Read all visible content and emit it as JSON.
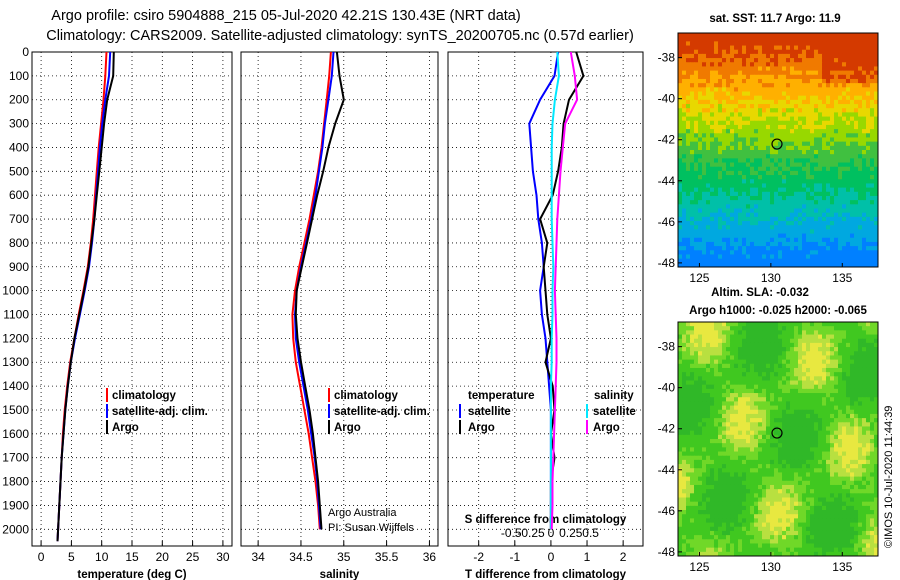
{
  "header": {
    "title_line1": "Argo profile: csiro 5904888_215 05-Jul-2020 42.21S 130.43E (NRT data)",
    "title_line2": "Climatology: CARS2009. Satellite-adjusted climatology: synTS_20200705.nc (0.57d earlier)"
  },
  "colors": {
    "climatology": "#ff0000",
    "satellite": "#0000ff",
    "argo": "#000000",
    "sat_salinity": "#00e8ff",
    "argo_salinity": "#ff00ff"
  },
  "depth_ticks": [
    "0",
    "100",
    "200",
    "300",
    "400",
    "500",
    "600",
    "700",
    "800",
    "900",
    "1000",
    "1100",
    "1200",
    "1300",
    "1400",
    "1500",
    "1600",
    "1700",
    "1800",
    "1900",
    "2000"
  ],
  "legend": {
    "climatology": "climatology",
    "satellite": "satellite-adj. clim.",
    "argo": "Argo"
  },
  "diff_legend": {
    "temperature": "temperature",
    "salinity": "salinity",
    "satellite": "satellite",
    "argo": "Argo"
  },
  "credit": {
    "line1": "Argo Australia",
    "line2": "PI: Susan Wijffels"
  },
  "imos_stamp": "©IMOS 10-Jul-2020 11:44:39",
  "map_top": {
    "title": "sat. SST: 11.7 Argo: 11.9",
    "footer": "Altim. SLA: -0.032"
  },
  "map_bottom": {
    "title": "Argo h1000: -0.025 h2000: -0.065"
  },
  "map_lat_ticks": [
    "-38",
    "-40",
    "-42",
    "-44",
    "-46",
    "-48"
  ],
  "map_lon_ticks": [
    "125",
    "130",
    "135"
  ],
  "chart_data": [
    {
      "type": "line",
      "name": "temperature-profile",
      "xlabel": "temperature (deg C)",
      "ylabel": "depth",
      "xlim": [
        -1.5,
        31.5
      ],
      "ylim": [
        2070,
        0
      ],
      "xticks": [
        "0",
        "5",
        "10",
        "15",
        "20",
        "25",
        "30"
      ],
      "series": [
        {
          "name": "climatology",
          "x": [
            10.8,
            10.6,
            10.3,
            9.9,
            9.5,
            9.2,
            8.9,
            8.6,
            8.2,
            7.7,
            7.0,
            6.2,
            5.5,
            4.8,
            4.3,
            3.9,
            3.6,
            3.4,
            3.2,
            3.0,
            2.8,
            2.7
          ],
          "y": [
            0,
            100,
            200,
            300,
            400,
            500,
            600,
            700,
            800,
            900,
            1000,
            1100,
            1200,
            1300,
            1400,
            1500,
            1600,
            1700,
            1800,
            1900,
            2000,
            2050
          ]
        },
        {
          "name": "satellite-adj. clim.",
          "x": [
            11.4,
            11.2,
            10.6,
            10.1,
            9.7,
            9.4,
            9.1,
            8.8,
            8.4,
            7.9,
            7.2,
            6.4,
            5.6,
            4.9,
            4.4,
            4.0,
            3.7,
            3.4,
            3.2,
            3.0,
            2.8,
            2.7
          ],
          "y": [
            0,
            100,
            200,
            300,
            400,
            500,
            600,
            700,
            800,
            900,
            1000,
            1100,
            1200,
            1300,
            1400,
            1500,
            1600,
            1700,
            1800,
            1900,
            2000,
            2050
          ]
        },
        {
          "name": "Argo",
          "x": [
            12.0,
            11.9,
            10.9,
            10.4,
            10.0,
            9.6,
            9.2,
            8.8,
            8.3,
            7.8,
            7.1,
            6.3,
            5.5,
            4.9,
            4.4,
            4.0,
            3.7,
            3.4,
            3.2,
            3.0,
            2.8,
            2.7
          ],
          "y": [
            0,
            100,
            200,
            300,
            400,
            500,
            600,
            700,
            800,
            900,
            1000,
            1100,
            1200,
            1300,
            1400,
            1500,
            1600,
            1700,
            1800,
            1900,
            2000,
            2050
          ]
        }
      ]
    },
    {
      "type": "line",
      "name": "salinity-profile",
      "xlabel": "salinity",
      "ylabel": "depth",
      "xlim": [
        33.8,
        36.1
      ],
      "ylim": [
        2070,
        0
      ],
      "xticks": [
        "34",
        "34.5",
        "35",
        "35.5",
        "36"
      ],
      "series": [
        {
          "name": "climatology",
          "x": [
            34.85,
            34.83,
            34.8,
            34.77,
            34.74,
            34.7,
            34.65,
            34.6,
            34.54,
            34.48,
            34.43,
            34.4,
            34.41,
            34.44,
            34.49,
            34.54,
            34.59,
            34.63,
            34.67,
            34.7,
            34.72
          ],
          "y": [
            0,
            100,
            200,
            300,
            400,
            500,
            600,
            700,
            800,
            900,
            1000,
            1100,
            1200,
            1300,
            1400,
            1500,
            1600,
            1700,
            1800,
            1900,
            2000
          ]
        },
        {
          "name": "satellite-adj. clim.",
          "x": [
            34.88,
            34.86,
            34.82,
            34.78,
            34.75,
            34.71,
            34.67,
            34.62,
            34.56,
            34.5,
            34.45,
            34.43,
            34.44,
            34.48,
            34.53,
            34.58,
            34.62,
            34.66,
            34.69,
            34.71,
            34.73
          ],
          "y": [
            0,
            100,
            200,
            300,
            400,
            500,
            600,
            700,
            800,
            900,
            1000,
            1100,
            1200,
            1300,
            1400,
            1500,
            1600,
            1700,
            1800,
            1900,
            2000
          ]
        },
        {
          "name": "Argo",
          "x": [
            34.92,
            34.95,
            35.0,
            34.9,
            34.82,
            34.76,
            34.69,
            34.63,
            34.57,
            34.51,
            34.45,
            34.44,
            34.46,
            34.5,
            34.55,
            34.6,
            34.64,
            34.67,
            34.7,
            34.72,
            34.74
          ],
          "y": [
            0,
            100,
            200,
            300,
            400,
            500,
            600,
            700,
            800,
            900,
            1000,
            1100,
            1200,
            1300,
            1400,
            1500,
            1600,
            1700,
            1800,
            1900,
            2000
          ]
        }
      ]
    },
    {
      "type": "line",
      "name": "difference-profile",
      "xlabel": "T difference from climatology",
      "xlabel2": "S difference from climatology",
      "ylabel": "depth",
      "xlim": [
        -2.85,
        2.55
      ],
      "ylim": [
        2070,
        0
      ],
      "xticks": [
        "-2",
        "-1",
        "0",
        "1",
        "2"
      ],
      "xticks2": [
        "-0.5",
        "-0.25",
        "0",
        "0.25",
        "0.5"
      ],
      "series": [
        {
          "name": "temperature satellite",
          "x": [
            0.2,
            0.1,
            -0.3,
            -0.6,
            -0.55,
            -0.5,
            -0.4,
            -0.35,
            -0.25,
            -0.2,
            -0.3,
            -0.25,
            -0.15,
            -0.1,
            -0.05,
            0,
            0,
            0,
            0,
            0,
            0
          ],
          "y": [
            0,
            100,
            200,
            300,
            400,
            500,
            600,
            700,
            800,
            900,
            1000,
            1100,
            1200,
            1300,
            1400,
            1500,
            1600,
            1700,
            1800,
            1900,
            2000
          ]
        },
        {
          "name": "temperature Argo",
          "x": [
            0.7,
            0.9,
            0.5,
            0.35,
            0.3,
            0.2,
            0.05,
            -0.3,
            -0.1,
            -0.2,
            -0.15,
            -0.1,
            0,
            -0.15,
            0.05,
            0.1,
            0,
            0.1,
            0,
            0,
            0
          ],
          "y": [
            0,
            100,
            200,
            300,
            400,
            500,
            600,
            700,
            800,
            900,
            1000,
            1100,
            1200,
            1300,
            1400,
            1500,
            1600,
            1700,
            1800,
            1900,
            2000
          ]
        },
        {
          "name": "salinity satellite",
          "x": [
            0.08,
            0.1,
            0.05,
            0.02,
            0.01,
            0.01,
            0.01,
            0.01,
            0.02,
            0.03,
            0.02,
            0.02,
            0.01,
            0.01,
            0,
            0,
            0,
            0,
            0,
            0,
            0
          ],
          "y": [
            0,
            100,
            200,
            300,
            400,
            500,
            600,
            700,
            800,
            900,
            1000,
            1100,
            1200,
            1300,
            1400,
            1500,
            1600,
            1700,
            1800,
            1900,
            2000
          ]
        },
        {
          "name": "salinity Argo",
          "x": [
            0.25,
            0.3,
            0.33,
            0.18,
            0.15,
            0.12,
            0.1,
            0.08,
            0.07,
            0.06,
            0.05,
            0.06,
            0.07,
            0.07,
            0.06,
            0.05,
            0.04,
            0.03,
            0.02,
            0.02,
            0.01
          ],
          "y": [
            0,
            100,
            200,
            300,
            400,
            500,
            600,
            700,
            800,
            900,
            1000,
            1100,
            1200,
            1300,
            1400,
            1500,
            1600,
            1700,
            1800,
            1900,
            2000
          ]
        }
      ]
    },
    {
      "type": "heatmap",
      "name": "sst-map",
      "title": "sat. SST: 11.7 Argo: 11.9",
      "xlim": [
        123.5,
        137.5
      ],
      "ylim": [
        -48.2,
        -36.8
      ],
      "marker": {
        "lon": 130.43,
        "lat": -42.21
      }
    },
    {
      "type": "heatmap",
      "name": "sla-map",
      "title": "Argo h1000: -0.025 h2000: -0.065",
      "xlim": [
        123.5,
        137.5
      ],
      "ylim": [
        -48.2,
        -36.8
      ],
      "marker": {
        "lon": 130.43,
        "lat": -42.21
      }
    }
  ]
}
